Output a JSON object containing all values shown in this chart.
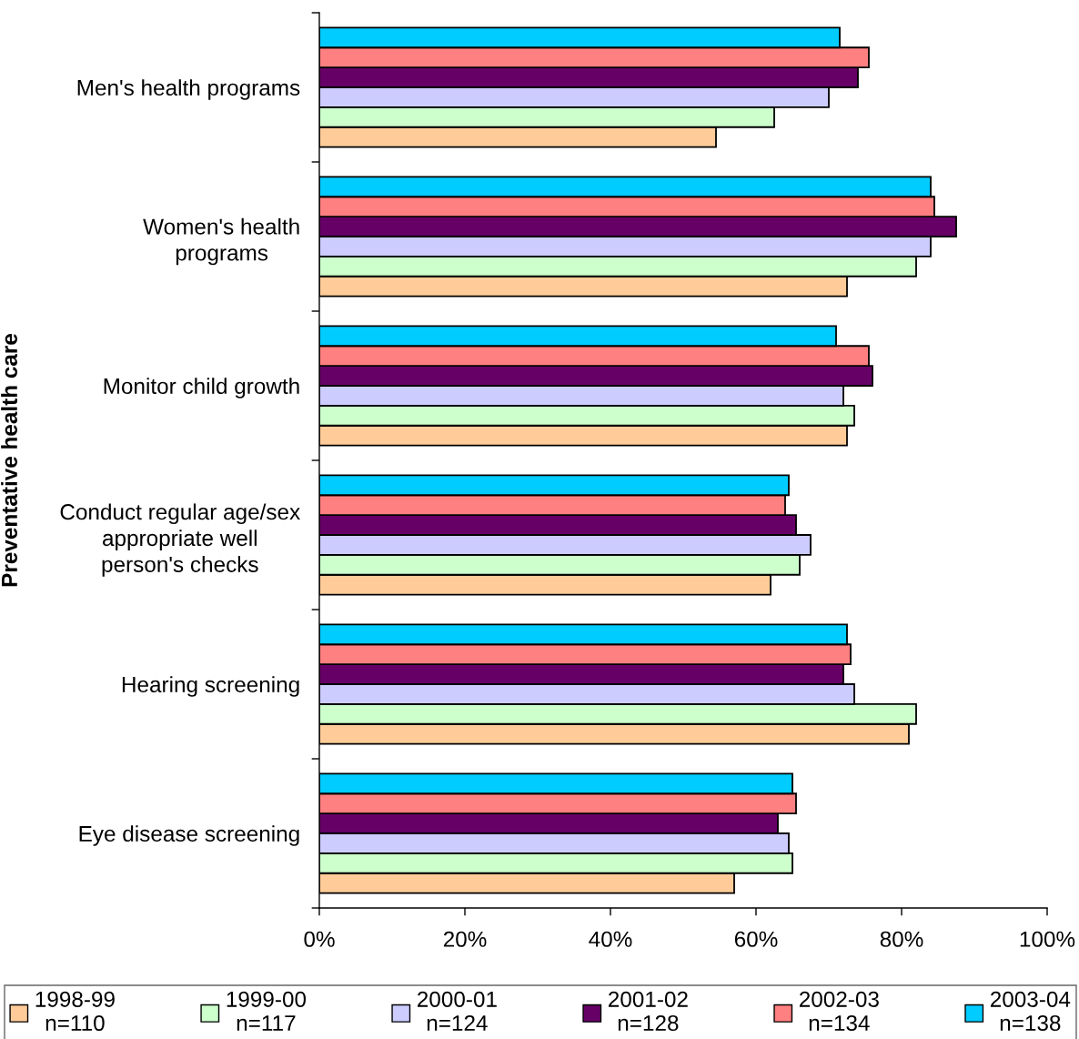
{
  "chart_data": {
    "type": "bar",
    "orientation": "horizontal",
    "ylabel": "Preventative health care",
    "categories": [
      "Men's health programs",
      "Women's health\nprograms",
      "Monitor child growth",
      "Conduct regular age/sex\nappropriate well\nperson's checks",
      "Hearing screening",
      "Eye disease screening"
    ],
    "series": [
      {
        "name": "1998-99\nn=110",
        "color": "#ffcc99",
        "values": [
          54.5,
          72.5,
          72.5,
          62,
          81,
          57
        ]
      },
      {
        "name": "1999-00\nn=117",
        "color": "#ccffcc",
        "values": [
          62.5,
          82,
          73.5,
          66,
          82,
          65
        ]
      },
      {
        "name": "2000-01\nn=124",
        "color": "#ccccff",
        "values": [
          70,
          84,
          72,
          67.5,
          73.5,
          64.5
        ]
      },
      {
        "name": "2001-02\nn=128",
        "color": "#660066",
        "values": [
          74,
          87.5,
          76,
          65.5,
          72,
          63
        ]
      },
      {
        "name": "2002-03\nn=134",
        "color": "#ff8080",
        "values": [
          75.5,
          84.5,
          75.5,
          64,
          73,
          65.5
        ]
      },
      {
        "name": "2003-04\nn=138",
        "color": "#00ccff",
        "values": [
          71.5,
          84,
          71,
          64.5,
          72.5,
          65
        ]
      }
    ],
    "xlim": [
      0,
      100
    ],
    "xticks": [
      {
        "value": 0,
        "label": "0%"
      },
      {
        "value": 20,
        "label": "20%"
      },
      {
        "value": 40,
        "label": "40%"
      },
      {
        "value": 60,
        "label": "60%"
      },
      {
        "value": 80,
        "label": "80%"
      },
      {
        "value": 100,
        "label": "100%"
      }
    ],
    "grid": false,
    "legend": "bottom"
  }
}
